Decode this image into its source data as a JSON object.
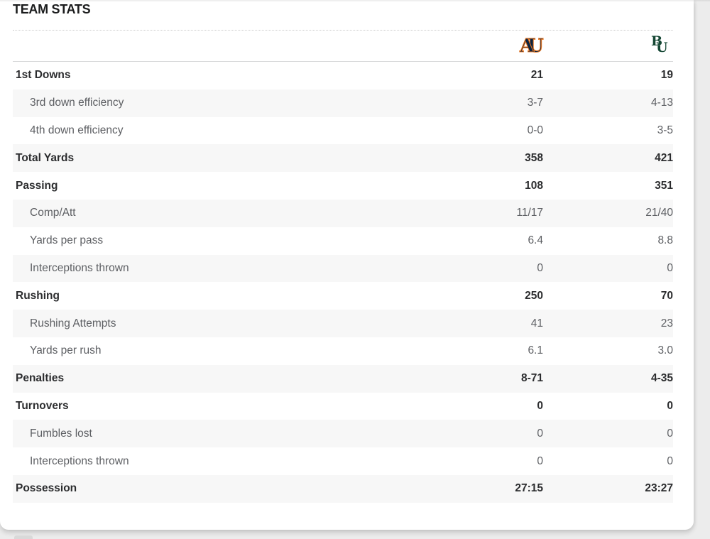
{
  "panel": {
    "title": "TEAM STATS"
  },
  "teams": {
    "away": {
      "name": "Auburn",
      "monogram": {
        "first": "A",
        "second": "U"
      },
      "primary_color": "#0c2340",
      "outline_color": "#e87722"
    },
    "home": {
      "name": "Baylor",
      "monogram": {
        "first": "B",
        "second": "U"
      },
      "primary_color": "#154734",
      "outline_color": "#ffffff"
    }
  },
  "colors": {
    "alt_row_bg": "#f7f7f7",
    "page_bg": "#ececec",
    "divider": "#d6d7d8",
    "text_primary": "#2c2d2f",
    "text_secondary": "#5d5f63"
  },
  "table": {
    "rows": [
      {
        "label": "1st Downs",
        "away": "21",
        "home": "19",
        "indent": false
      },
      {
        "label": "3rd down efficiency",
        "away": "3-7",
        "home": "4-13",
        "indent": true
      },
      {
        "label": "4th down efficiency",
        "away": "0-0",
        "home": "3-5",
        "indent": true
      },
      {
        "label": "Total Yards",
        "away": "358",
        "home": "421",
        "indent": false
      },
      {
        "label": "Passing",
        "away": "108",
        "home": "351",
        "indent": false
      },
      {
        "label": "Comp/Att",
        "away": "11/17",
        "home": "21/40",
        "indent": true
      },
      {
        "label": "Yards per pass",
        "away": "6.4",
        "home": "8.8",
        "indent": true
      },
      {
        "label": "Interceptions thrown",
        "away": "0",
        "home": "0",
        "indent": true
      },
      {
        "label": "Rushing",
        "away": "250",
        "home": "70",
        "indent": false
      },
      {
        "label": "Rushing Attempts",
        "away": "41",
        "home": "23",
        "indent": true
      },
      {
        "label": "Yards per rush",
        "away": "6.1",
        "home": "3.0",
        "indent": true
      },
      {
        "label": "Penalties",
        "away": "8-71",
        "home": "4-35",
        "indent": false
      },
      {
        "label": "Turnovers",
        "away": "0",
        "home": "0",
        "indent": false
      },
      {
        "label": "Fumbles lost",
        "away": "0",
        "home": "0",
        "indent": true
      },
      {
        "label": "Interceptions thrown",
        "away": "0",
        "home": "0",
        "indent": true
      },
      {
        "label": "Possession",
        "away": "27:15",
        "home": "23:27",
        "indent": false
      }
    ]
  }
}
